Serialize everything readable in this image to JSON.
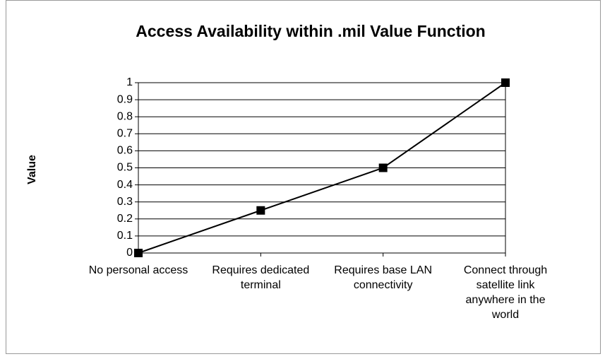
{
  "chart_data": {
    "type": "line",
    "title": "Access Availability within .mil Value Function",
    "y_label": "Value",
    "categories": [
      "No personal access",
      "Requires dedicated terminal",
      "Requires base LAN connectivity",
      "Connect through satellite link anywhere in the world"
    ],
    "series": [
      {
        "name": "Value",
        "color": "#000000",
        "values": [
          0,
          0.25,
          0.5,
          1
        ]
      }
    ],
    "ylim": [
      0,
      1
    ],
    "yticks": [
      0,
      0.1,
      0.2,
      0.3,
      0.4,
      0.5,
      0.6,
      0.7,
      0.8,
      0.9,
      1
    ],
    "grid": true,
    "marker": "square"
  }
}
